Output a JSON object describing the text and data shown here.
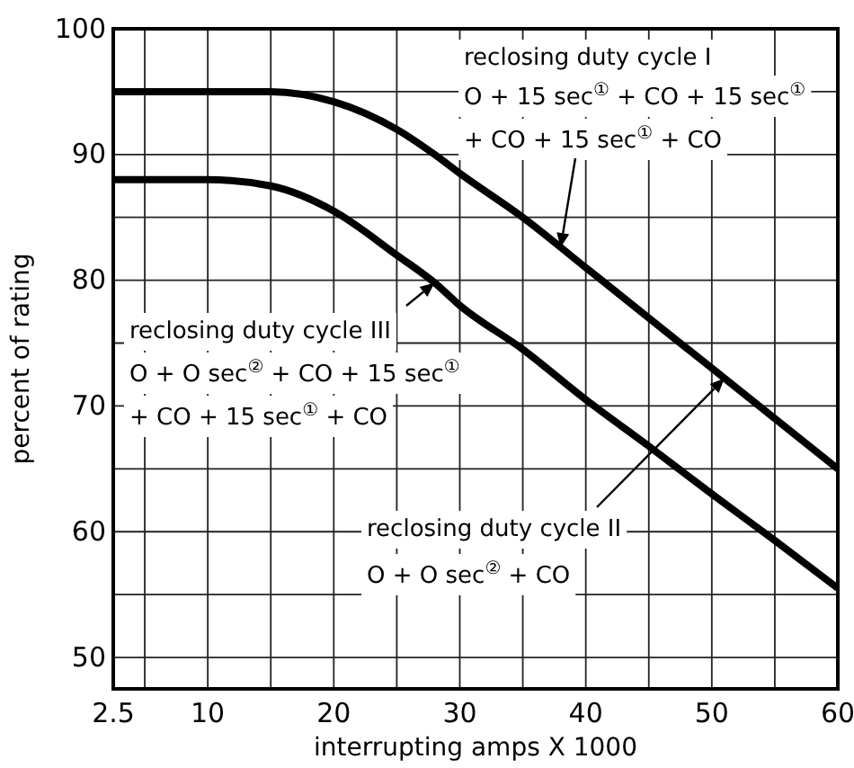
{
  "chart_data": {
    "type": "line",
    "xlabel": "interrupting amps X 1000",
    "ylabel": "percent of rating",
    "x": [
      2.5,
      5,
      10,
      15,
      20,
      25,
      28,
      30,
      35,
      40,
      45,
      50,
      55,
      60
    ],
    "series": [
      {
        "color": "#000000",
        "values": [
          95,
          95,
          95,
          95,
          94.2,
          92,
          90,
          88.5,
          85,
          81,
          77,
          73,
          69,
          65
        ]
      },
      {
        "color": "#000000",
        "values": [
          88,
          88,
          88,
          87.5,
          85.5,
          82,
          79.8,
          78,
          74.5,
          70.5,
          66.8,
          63,
          59.3,
          55.5
        ]
      }
    ],
    "xlim": [
      2.5,
      60
    ],
    "ylim": [
      47.5,
      100
    ],
    "xticks": [
      2.5,
      {
        "value": 5,
        "label": null
      },
      10,
      {
        "value": 15,
        "label": null
      },
      20,
      {
        "value": 25,
        "label": null
      },
      30,
      {
        "value": 35,
        "label": null
      },
      40,
      {
        "value": 45,
        "label": null
      },
      50,
      {
        "value": 55,
        "label": null
      },
      60
    ],
    "yticks": [
      50,
      {
        "value": 55,
        "label": null
      },
      60,
      {
        "value": 65,
        "label": null
      },
      70,
      {
        "value": 75,
        "label": null
      },
      80,
      {
        "value": 85,
        "label": null
      },
      90,
      {
        "value": 95,
        "label": null
      },
      100
    ],
    "grid": true,
    "marker": "none",
    "line_style": "solid",
    "annotations": [
      "reclosing duty cycle I",
      "O + 15 sec$^{①}$ + CO + 15 sec$^{①}$",
      {
        "text": "+ CO + 15 sec$^{①}$ + CO",
        "x": 38,
        "y": 82.6
      },
      {
        "text": "reclosing duty cycle III",
        "x": 28,
        "y": 79.8
      },
      "O + O sec$^{②}$ + CO + 15 sec$^{①}$",
      "+ CO + 15 sec$^{①}$ + CO",
      {
        "text": "reclosing duty cycle II",
        "x": 51,
        "y": 72.2
      },
      "O + O sec$^{②}$ + CO"
    ]
  }
}
